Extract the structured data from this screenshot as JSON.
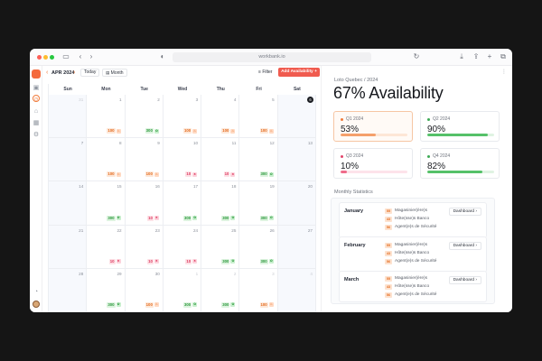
{
  "browser": {
    "url": "workbank.io"
  },
  "sidebar": {
    "icons": [
      "video-icon",
      "clock-icon",
      "home-icon",
      "grid-icon",
      "gear-icon"
    ],
    "bottom_icon": "bell-icon"
  },
  "calendar": {
    "month_label": "APR 2024",
    "today_label": "Today",
    "view_label": "Month",
    "filter_label": "Filter",
    "add_label": "Add Availability",
    "weekdays": [
      "Sun",
      "Mon",
      "Tue",
      "Wed",
      "Thu",
      "Fri",
      "Sat"
    ],
    "weeks": [
      [
        {
          "d": "31",
          "dim": true
        },
        {
          "d": "1",
          "c": "o",
          "v": "100"
        },
        {
          "d": "2",
          "c": "g",
          "v": "300"
        },
        {
          "d": "3",
          "c": "o",
          "v": "100"
        },
        {
          "d": "4",
          "c": "o",
          "v": "100"
        },
        {
          "d": "5",
          "c": "o",
          "v": "100"
        },
        {
          "d": "6",
          "today": true
        }
      ],
      [
        {
          "d": "7"
        },
        {
          "d": "8",
          "c": "o",
          "v": "100"
        },
        {
          "d": "9",
          "c": "o",
          "v": "100"
        },
        {
          "d": "10",
          "c": "p",
          "v": "10"
        },
        {
          "d": "11",
          "c": "p",
          "v": "10"
        },
        {
          "d": "12",
          "c": "g",
          "v": "300"
        },
        {
          "d": "13"
        }
      ],
      [
        {
          "d": "14"
        },
        {
          "d": "15",
          "c": "g",
          "v": "300"
        },
        {
          "d": "16",
          "c": "p",
          "v": "10"
        },
        {
          "d": "17",
          "c": "g",
          "v": "300"
        },
        {
          "d": "18",
          "c": "g",
          "v": "300"
        },
        {
          "d": "19",
          "c": "g",
          "v": "300"
        },
        {
          "d": "20"
        }
      ],
      [
        {
          "d": "21"
        },
        {
          "d": "22",
          "c": "p",
          "v": "10"
        },
        {
          "d": "23",
          "c": "p",
          "v": "10"
        },
        {
          "d": "24",
          "c": "p",
          "v": "10"
        },
        {
          "d": "25",
          "c": "g",
          "v": "300"
        },
        {
          "d": "26",
          "c": "g",
          "v": "300"
        },
        {
          "d": "27"
        }
      ],
      [
        {
          "d": "28"
        },
        {
          "d": "29",
          "c": "g",
          "v": "300"
        },
        {
          "d": "30",
          "c": "o",
          "v": "100"
        },
        {
          "d": "1",
          "dim": true,
          "c": "g",
          "v": "300"
        },
        {
          "d": "2",
          "dim": true,
          "c": "g",
          "v": "300"
        },
        {
          "d": "3",
          "dim": true,
          "c": "o",
          "v": "100"
        },
        {
          "d": "4",
          "dim": true
        }
      ]
    ]
  },
  "panel": {
    "breadcrumb": "Loto Quebec / 2024",
    "headline": "67% Availability",
    "quarters": [
      {
        "label": "Q1 2024",
        "value": "53%",
        "fraction": 0.53,
        "color": "#f5a06b",
        "dot": "#f07a3a",
        "track": "#fde6d6"
      },
      {
        "label": "Q2 2024",
        "value": "90%",
        "fraction": 0.9,
        "color": "#55c169",
        "dot": "#3eaa55",
        "track": "#dff3e2"
      },
      {
        "label": "Q3 2024",
        "value": "10%",
        "fraction": 0.1,
        "color": "#ef6b8a",
        "dot": "#e2456b",
        "track": "#fde3ea"
      },
      {
        "label": "Q4 2024",
        "value": "82%",
        "fraction": 0.82,
        "color": "#55c169",
        "dot": "#3eaa55",
        "track": "#dff3e2"
      }
    ],
    "stats_title": "Monthly Statistics",
    "months": [
      {
        "name": "January",
        "dash": "Dashboard",
        "roles": [
          {
            "n": "55",
            "r": "Magasinier(ère)s"
          },
          {
            "n": "43",
            "r": "Hôte(sse)s Banco"
          },
          {
            "n": "56",
            "r": "Agent(e)s de Sécurité"
          }
        ]
      },
      {
        "name": "February",
        "dash": "Dashboard",
        "roles": [
          {
            "n": "55",
            "r": "Magasinier(ère)s"
          },
          {
            "n": "43",
            "r": "Hôte(sse)s Banco"
          },
          {
            "n": "56",
            "r": "Agent(e)s de Sécurité"
          }
        ]
      },
      {
        "name": "March",
        "dash": "Dashboard",
        "roles": [
          {
            "n": "55",
            "r": "Magasinier(ère)s"
          },
          {
            "n": "43",
            "r": "Hôte(sse)s Banco"
          },
          {
            "n": "56",
            "r": "Agent(e)s de Sécurité"
          }
        ]
      }
    ]
  }
}
